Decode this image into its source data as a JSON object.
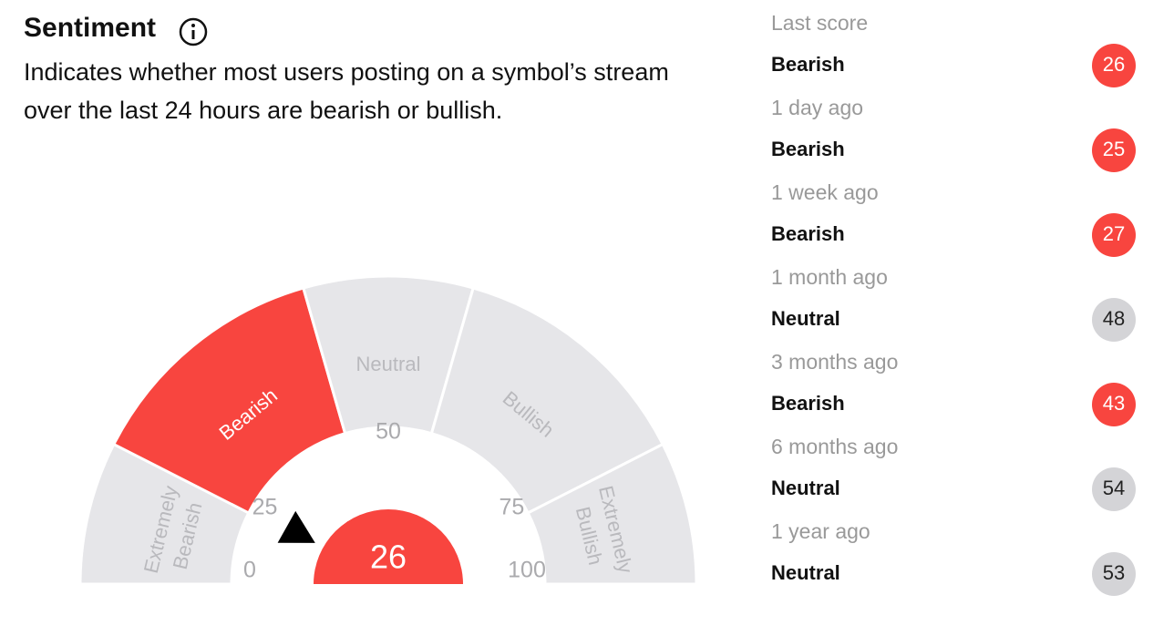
{
  "header": {
    "title": "Sentiment",
    "description_lines": [
      "Indicates whether most users posting on a symbol’s stream",
      "over the last 24 hours are bearish or bullish."
    ]
  },
  "gauge": {
    "value": 26,
    "ticks": [
      0,
      25,
      50,
      75,
      100
    ],
    "color": "#e6e6e9",
    "active_color": "#f8453f",
    "label_color": "#b9b9bd",
    "active_label_color": "#ffffff",
    "segments": [
      {
        "label": [
          "Extremely",
          "Bearish"
        ],
        "from": 0,
        "to": 25
      },
      {
        "label": [
          "Bearish"
        ],
        "from": 25,
        "to": 45
      },
      {
        "label": [
          "Neutral"
        ],
        "from": 45,
        "to": 55
      },
      {
        "label": [
          "Bullish"
        ],
        "from": 55,
        "to": 75
      },
      {
        "label": [
          "Extremely",
          "Bullish"
        ],
        "from": 75,
        "to": 100
      }
    ]
  },
  "history": [
    {
      "period": "Last score",
      "label": "Bearish",
      "score": 26,
      "color": "#f8453f",
      "text_color": "#ffffff"
    },
    {
      "period": "1 day ago",
      "label": "Bearish",
      "score": 25,
      "color": "#f8453f",
      "text_color": "#ffffff"
    },
    {
      "period": "1 week ago",
      "label": "Bearish",
      "score": 27,
      "color": "#f8453f",
      "text_color": "#ffffff"
    },
    {
      "period": "1 month ago",
      "label": "Neutral",
      "score": 48,
      "color": "#d4d4d7",
      "text_color": "#222222"
    },
    {
      "period": "3 months ago",
      "label": "Bearish",
      "score": 43,
      "color": "#f8453f",
      "text_color": "#ffffff"
    },
    {
      "period": "6 months ago",
      "label": "Neutral",
      "score": 54,
      "color": "#d4d4d7",
      "text_color": "#222222"
    },
    {
      "period": "1 year ago",
      "label": "Neutral",
      "score": 53,
      "color": "#d4d4d7",
      "text_color": "#222222"
    }
  ]
}
